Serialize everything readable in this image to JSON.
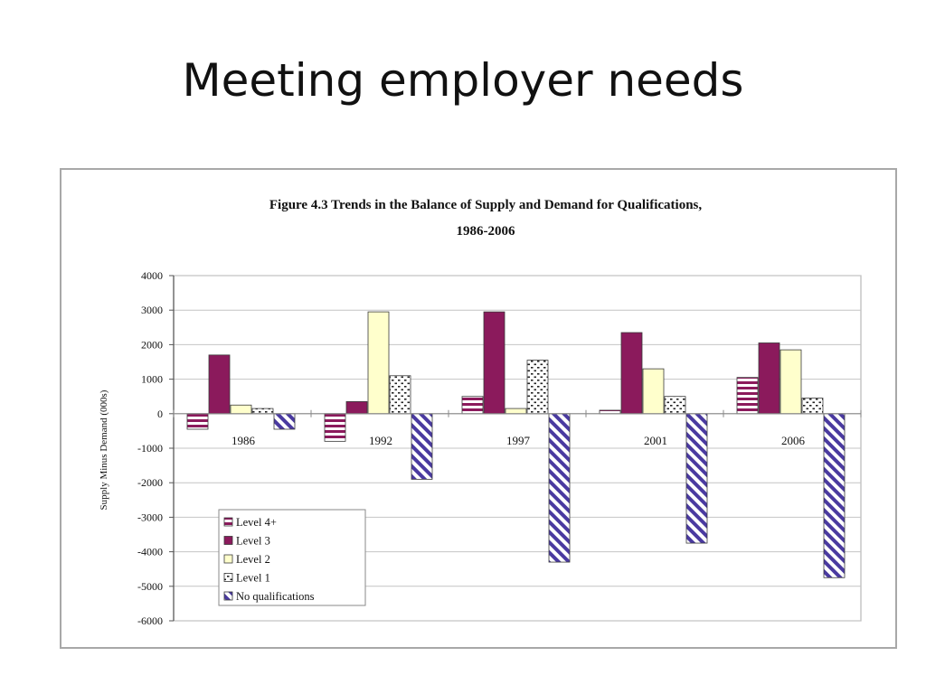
{
  "slide": {
    "title": "Meeting employer needs"
  },
  "chart_data": {
    "type": "bar",
    "title_line1": "Figure 4.3 Trends in the Balance of Supply and Demand for Qualifications,",
    "title_line2": "1986-2006",
    "ylabel": "Supply Minus Demand (000s)",
    "xlabel": "",
    "ylim": [
      -6000,
      4000
    ],
    "yticks": [
      4000,
      3000,
      2000,
      1000,
      0,
      -1000,
      -2000,
      -3000,
      -4000,
      -5000,
      -6000
    ],
    "categories": [
      "1986",
      "1992",
      "1997",
      "2001",
      "2006"
    ],
    "grid": true,
    "legend_position": "bottom-left",
    "series": [
      {
        "name": "Level 4+",
        "values": [
          -450,
          -800,
          500,
          100,
          1050
        ],
        "color": "#8b1a5c",
        "pattern": "horizontal-stripes"
      },
      {
        "name": "Level 3",
        "values": [
          1700,
          350,
          2950,
          2350,
          2050
        ],
        "color": "#8b1a5c",
        "pattern": "solid"
      },
      {
        "name": "Level 2",
        "values": [
          250,
          2950,
          150,
          1300,
          1850
        ],
        "color": "#ffffcc",
        "pattern": "solid"
      },
      {
        "name": "Level 1",
        "values": [
          150,
          1100,
          1550,
          500,
          450
        ],
        "color": "#ffffff",
        "pattern": "dots"
      },
      {
        "name": "No qualifications",
        "values": [
          -450,
          -1900,
          -4300,
          -3750,
          -4750
        ],
        "color": "#4a3aa0",
        "pattern": "diagonal-stripes"
      }
    ]
  }
}
